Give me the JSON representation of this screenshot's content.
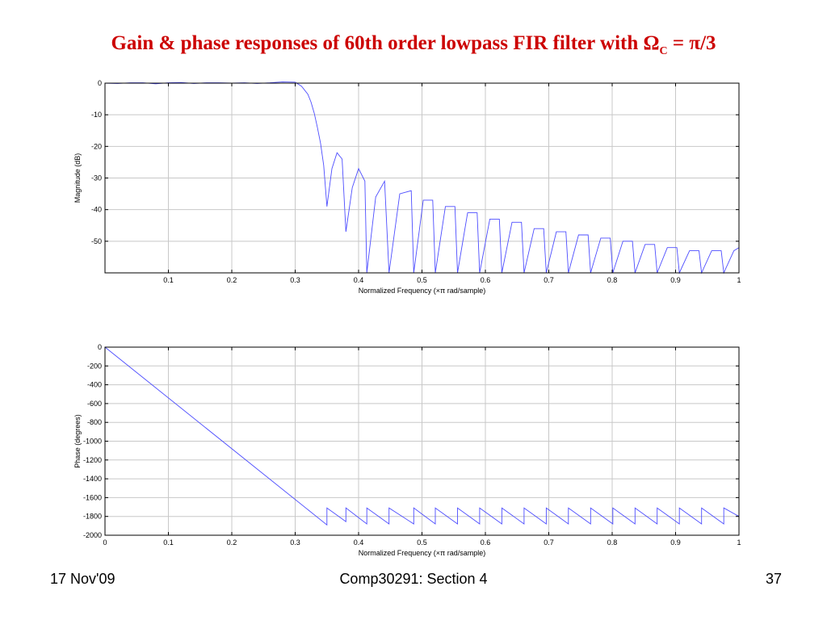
{
  "slide": {
    "title_main": "Gain & phase responses of 60th order lowpass FIR filter with Ω",
    "title_sub": "C",
    "title_tail": " = π/3",
    "title_color": "#cc0000",
    "footer_date": "17 Nov'09",
    "footer_course": "Comp30291: Section 4",
    "footer_page": "37"
  },
  "chart_data": [
    {
      "type": "line",
      "title": "",
      "xlabel": "Normalized Frequency  (×π rad/sample)",
      "ylabel": "Magnitude (dB)",
      "xlim": [
        0,
        1
      ],
      "ylim": [
        -60,
        0
      ],
      "xticks": [
        0.1,
        0.2,
        0.3,
        0.4,
        0.5,
        0.6,
        0.7,
        0.8,
        0.9,
        1
      ],
      "xtick_labels": [
        "0.1",
        "0.2",
        "0.3",
        "0.4",
        "0.5",
        "0.6",
        "0.7",
        "0.8",
        "0.9",
        "1"
      ],
      "yticks": [
        0,
        -10,
        -20,
        -30,
        -40,
        -50
      ],
      "ytick_labels": [
        "0",
        "-10",
        "-20",
        "-30",
        "-40",
        "-50"
      ],
      "grid": true,
      "line_color": "#4d4dff",
      "series": [
        {
          "x": [
            0.0,
            0.02,
            0.04,
            0.06,
            0.08,
            0.1,
            0.12,
            0.14,
            0.16,
            0.18,
            0.2,
            0.22,
            0.24,
            0.26,
            0.28,
            0.3,
            0.31,
            0.32,
            0.325,
            0.33,
            0.335,
            0.34,
            0.345,
            0.35,
            0.35,
            0.358,
            0.366,
            0.374,
            0.38,
            0.38,
            0.39,
            0.4,
            0.41,
            0.413,
            0.413,
            0.427,
            0.441,
            0.448,
            0.448,
            0.465,
            0.483,
            0.487,
            0.487,
            0.502,
            0.517,
            0.521,
            0.521,
            0.537,
            0.552,
            0.556,
            0.556,
            0.572,
            0.587,
            0.591,
            0.591,
            0.607,
            0.622,
            0.626,
            0.626,
            0.642,
            0.657,
            0.661,
            0.661,
            0.677,
            0.692,
            0.696,
            0.696,
            0.712,
            0.727,
            0.731,
            0.731,
            0.747,
            0.762,
            0.766,
            0.766,
            0.782,
            0.797,
            0.801,
            0.801,
            0.817,
            0.832,
            0.836,
            0.836,
            0.852,
            0.867,
            0.871,
            0.871,
            0.887,
            0.902,
            0.906,
            0.906,
            0.922,
            0.937,
            0.941,
            0.941,
            0.957,
            0.972,
            0.976,
            0.976,
            0.992,
            1.0
          ],
          "y": [
            0.0,
            -0.1,
            0.1,
            0.1,
            -0.2,
            0.1,
            0.2,
            -0.1,
            0.1,
            0.1,
            0.0,
            0.1,
            -0.1,
            0.1,
            0.4,
            0.3,
            -1.0,
            -3.5,
            -6.0,
            -9.5,
            -14.0,
            -19.0,
            -26.0,
            -39.0,
            -39.0,
            -27.0,
            -22.0,
            -24.0,
            -47.0,
            -47.0,
            -33.0,
            -27.0,
            -31.0,
            -60.0,
            -60.0,
            -36.0,
            -31.0,
            -60.0,
            -60.0,
            -35.0,
            -34.0,
            -60.0,
            -60.0,
            -37.0,
            -37.0,
            -60.0,
            -60.0,
            -39.0,
            -39.0,
            -60.0,
            -60.0,
            -41.0,
            -41.0,
            -60.0,
            -60.0,
            -43.0,
            -43.0,
            -60.0,
            -60.0,
            -44.0,
            -44.0,
            -60.0,
            -60.0,
            -46.0,
            -46.0,
            -60.0,
            -60.0,
            -47.0,
            -47.0,
            -60.0,
            -60.0,
            -48.0,
            -48.0,
            -60.0,
            -60.0,
            -49.0,
            -49.0,
            -60.0,
            -60.0,
            -50.0,
            -50.0,
            -60.0,
            -60.0,
            -51.0,
            -51.0,
            -60.0,
            -60.0,
            -52.0,
            -52.0,
            -60.0,
            -60.0,
            -53.0,
            -53.0,
            -60.0,
            -60.0,
            -53.0,
            -53.0,
            -60.0,
            -60.0,
            -53.0,
            -52.0
          ]
        }
      ]
    },
    {
      "type": "line",
      "title": "",
      "xlabel": "Normalized Frequency  (×π rad/sample)",
      "ylabel": "Phase (degrees)",
      "xlim": [
        0,
        1
      ],
      "ylim": [
        -2000,
        0
      ],
      "xticks": [
        0,
        0.1,
        0.2,
        0.3,
        0.4,
        0.5,
        0.6,
        0.7,
        0.8,
        0.9,
        1
      ],
      "xtick_labels": [
        "0",
        "0.1",
        "0.2",
        "0.3",
        "0.4",
        "0.5",
        "0.6",
        "0.7",
        "0.8",
        "0.9",
        "1"
      ],
      "yticks": [
        0,
        -200,
        -400,
        -600,
        -800,
        -1000,
        -1200,
        -1400,
        -1600,
        -1800,
        -2000
      ],
      "ytick_labels": [
        "0",
        "-200",
        "-400",
        "-600",
        "-800",
        "-1000",
        "-1200",
        "-1400",
        "-1600",
        "-1800",
        "-2000"
      ],
      "grid": true,
      "line_color": "#4d4dff",
      "series": [
        {
          "x": [
            0.0,
            0.35,
            0.35,
            0.38,
            0.38,
            0.413,
            0.413,
            0.448,
            0.448,
            0.487,
            0.487,
            0.521,
            0.521,
            0.556,
            0.556,
            0.591,
            0.591,
            0.626,
            0.626,
            0.661,
            0.661,
            0.696,
            0.696,
            0.731,
            0.731,
            0.766,
            0.766,
            0.801,
            0.801,
            0.836,
            0.836,
            0.871,
            0.871,
            0.906,
            0.906,
            0.941,
            0.941,
            0.976,
            0.976,
            1.0
          ],
          "y": [
            0,
            -1890,
            -1710,
            -1855,
            -1710,
            -1880,
            -1710,
            -1880,
            -1710,
            -1880,
            -1710,
            -1880,
            -1710,
            -1880,
            -1710,
            -1880,
            -1710,
            -1880,
            -1710,
            -1880,
            -1710,
            -1880,
            -1710,
            -1880,
            -1710,
            -1880,
            -1710,
            -1880,
            -1710,
            -1880,
            -1710,
            -1880,
            -1710,
            -1880,
            -1710,
            -1880,
            -1710,
            -1880,
            -1710,
            -1800
          ]
        }
      ]
    }
  ]
}
